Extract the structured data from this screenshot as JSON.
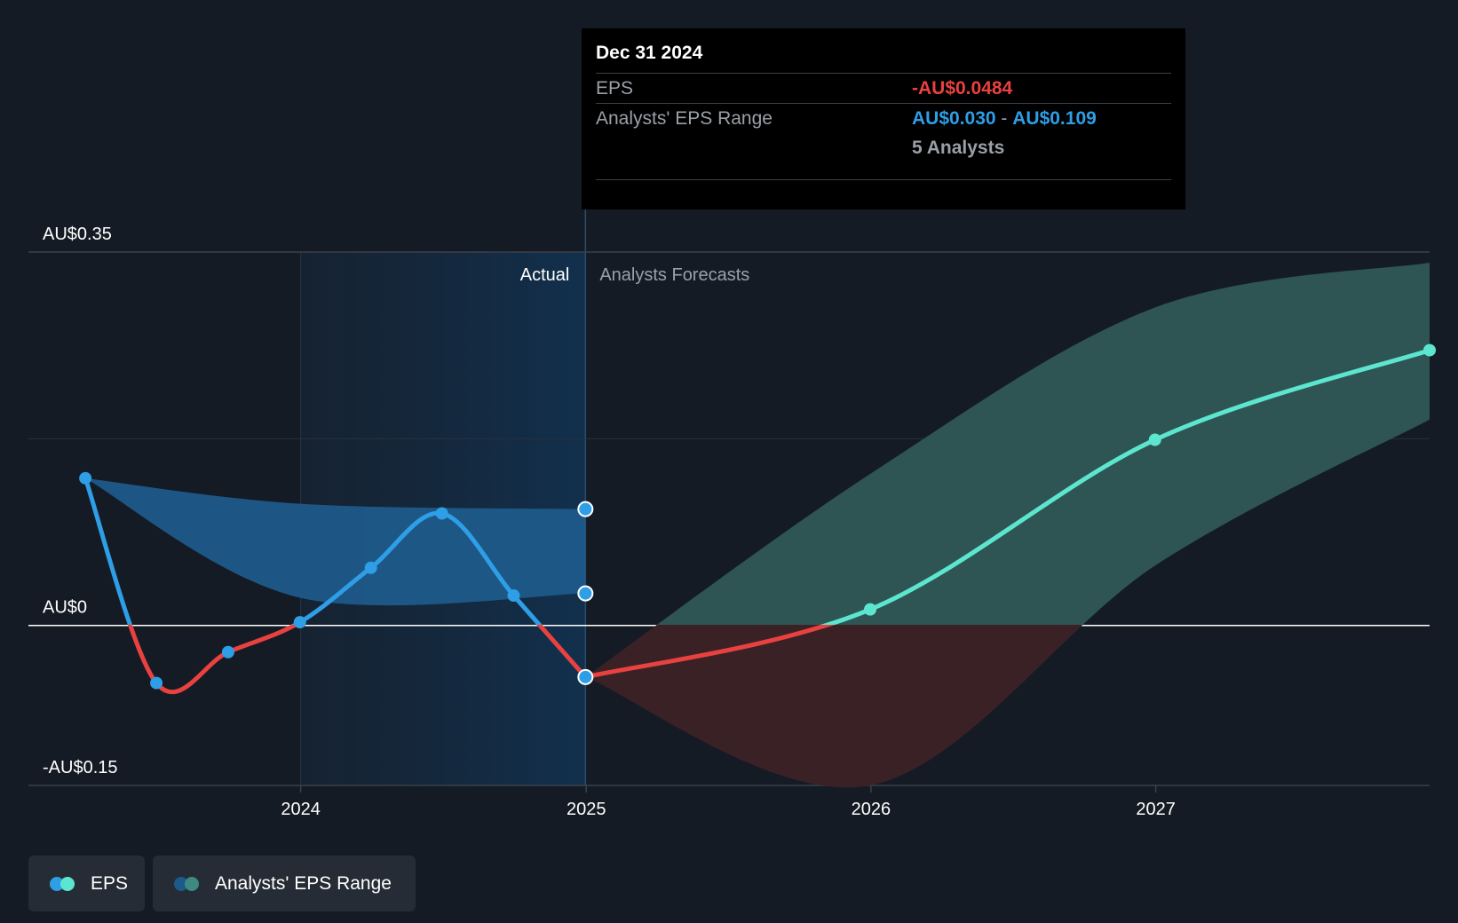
{
  "tooltip": {
    "date": "Dec 31 2024",
    "eps_label": "EPS",
    "eps_value": "-AU$0.0484",
    "range_label": "Analysts' EPS Range",
    "range_low": "AU$0.030",
    "range_sep": " - ",
    "range_high": "AU$0.109",
    "analysts": "5 Analysts"
  },
  "legend": {
    "eps_label": "EPS",
    "range_label": "Analysts' EPS Range"
  },
  "colors": {
    "background": "#151b24",
    "eps_positive": "#2e9ee6",
    "eps_negative": "#e8413f",
    "forecast_line": "#5de6cf",
    "forecast_band": "#2e5553",
    "forecast_band_negative": "#3a2126",
    "actual_band": "#1d5a8a",
    "legend_eps_dot_1": "#2e9ee6",
    "legend_eps_dot_2": "#5de6cf",
    "legend_range_dot_1": "#1d5a8a",
    "legend_range_dot_2": "#3e8a82"
  },
  "chart_data": {
    "type": "line",
    "title": "",
    "y_tick_labels": [
      "AU$0.35",
      "AU$0",
      "-AU$0.15"
    ],
    "y_ticks": [
      0.35,
      0,
      -0.15
    ],
    "ylim": [
      -0.15,
      0.35
    ],
    "x_tick_labels": [
      "2024",
      "2025",
      "2026",
      "2027"
    ],
    "x_ticks": [
      "2024-01-01",
      "2025-01-01",
      "2026-01-01",
      "2027-01-01"
    ],
    "xlim": [
      "2023-01-17",
      "2027-12-18"
    ],
    "section_labels": {
      "actual": "Actual",
      "forecast": "Analysts Forecasts"
    },
    "highlighted_period": [
      "2024-01-01",
      "2024-12-31"
    ],
    "grid": "horizontal",
    "legend_position": "bottom-left",
    "series": [
      {
        "name": "EPS",
        "kind": "actual",
        "points": [
          {
            "x": "2023-03-31",
            "y": 0.138
          },
          {
            "x": "2023-06-30",
            "y": -0.054
          },
          {
            "x": "2023-09-30",
            "y": -0.025
          },
          {
            "x": "2023-12-31",
            "y": 0.003
          },
          {
            "x": "2024-03-31",
            "y": 0.054
          },
          {
            "x": "2024-06-30",
            "y": 0.105
          },
          {
            "x": "2024-09-30",
            "y": 0.028
          },
          {
            "x": "2024-12-31",
            "y": -0.0484
          }
        ]
      },
      {
        "name": "EPS",
        "kind": "forecast",
        "points": [
          {
            "x": "2024-12-31",
            "y": -0.0484
          },
          {
            "x": "2025-12-31",
            "y": 0.015
          },
          {
            "x": "2026-12-31",
            "y": 0.174
          },
          {
            "x": "2027-12-18",
            "y": 0.258
          }
        ]
      },
      {
        "name": "Analysts' EPS Range",
        "kind": "actual-range",
        "upper": [
          {
            "x": "2023-03-31",
            "y": 0.138
          },
          {
            "x": "2023-12-31",
            "y": 0.114
          },
          {
            "x": "2024-12-31",
            "y": 0.109
          }
        ],
        "lower": [
          {
            "x": "2023-03-31",
            "y": 0.138
          },
          {
            "x": "2023-12-31",
            "y": 0.026
          },
          {
            "x": "2024-12-31",
            "y": 0.03
          }
        ]
      },
      {
        "name": "Analysts' EPS Range",
        "kind": "forecast-range",
        "upper": [
          {
            "x": "2024-12-31",
            "y": -0.0484
          },
          {
            "x": "2025-12-31",
            "y": 0.142
          },
          {
            "x": "2026-12-31",
            "y": 0.298
          },
          {
            "x": "2027-12-18",
            "y": 0.34
          }
        ],
        "lower": [
          {
            "x": "2024-12-31",
            "y": -0.0484
          },
          {
            "x": "2025-12-31",
            "y": -0.15
          },
          {
            "x": "2026-12-31",
            "y": 0.056
          },
          {
            "x": "2027-12-18",
            "y": 0.193
          }
        ]
      }
    ]
  }
}
